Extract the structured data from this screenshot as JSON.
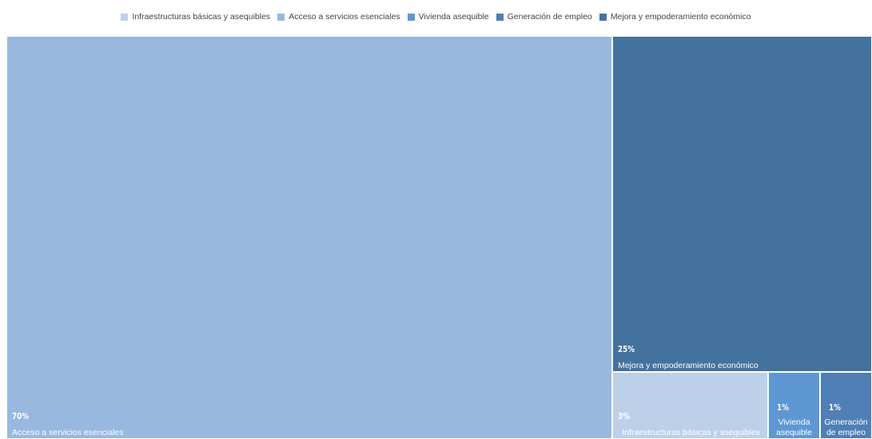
{
  "chart_data": {
    "type": "treemap",
    "legend_position": "top",
    "categories": [
      {
        "name": "Infraestructuras básicas y asequibles",
        "color": "#bdd0ea"
      },
      {
        "name": "Acceso a servicios esenciales",
        "color": "#98b8df"
      },
      {
        "name": "Vivienda asequible",
        "color": "#5e97d3"
      },
      {
        "name": "Generación de empleo",
        "color": "#4f7fb4"
      },
      {
        "name": "Mejora y empoderamiento económico",
        "color": "#44729f"
      }
    ],
    "tiles": [
      {
        "name": "Acceso a servicios esenciales",
        "label": "Acceso a servicios esenciales",
        "value": 70,
        "value_label": "70%",
        "color": "#98b8df"
      },
      {
        "name": "Mejora y empoderamiento económico",
        "label": "Mejora y empoderamiento económico",
        "value": 25,
        "value_label": "25%",
        "color": "#44729f"
      },
      {
        "name": "Infraestructuras básicas y asequibles",
        "label": "Infraestructuras básicas y asequibles",
        "value": 3,
        "value_label": "3%",
        "color": "#bdd0ea"
      },
      {
        "name": "Vivienda asequible",
        "label": "Vivienda asequible",
        "value": 1,
        "value_label": "1%",
        "color": "#5e97d3"
      },
      {
        "name": "Generación de empleo",
        "label": "Generación de empleo",
        "value": 1,
        "value_label": "1%",
        "color": "#4f7fb4"
      }
    ]
  }
}
